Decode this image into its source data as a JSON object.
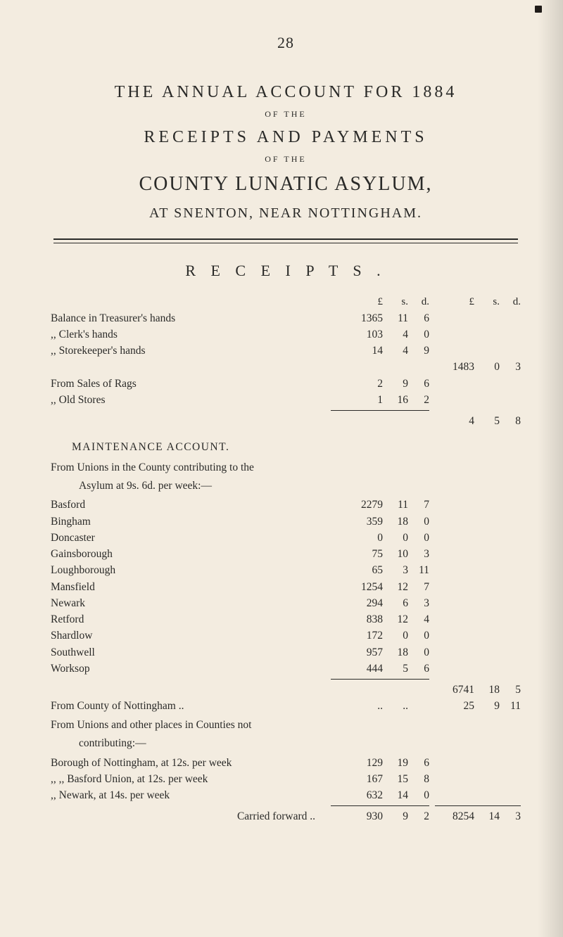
{
  "page_number": "28",
  "titles": {
    "h1": "THE  ANNUAL  ACCOUNT  FOR  1884",
    "of_the": "OF THE",
    "h2": "RECEIPTS  AND  PAYMENTS",
    "h3": "COUNTY LUNATIC ASYLUM,",
    "h4": "AT  SNENTON,  NEAR  NOTTINGHAM.",
    "section": "R E C E I P T S ."
  },
  "columns": {
    "inner": {
      "L": "£",
      "s": "s.",
      "d": "d."
    },
    "outer": {
      "L": "£",
      "s": "s.",
      "d": "d."
    }
  },
  "balance": {
    "rows": [
      {
        "label": "Balance in Treasurer's hands",
        "L": "1365",
        "s": "11",
        "d": "6"
      },
      {
        "label": ",,       Clerk's hands",
        "L": "103",
        "s": "4",
        "d": "0"
      },
      {
        "label": ",,       Storekeeper's hands",
        "L": "14",
        "s": "4",
        "d": "9"
      }
    ],
    "outer_total": {
      "L": "1483",
      "s": "0",
      "d": "3"
    }
  },
  "sales": {
    "rows": [
      {
        "label": "From Sales of Rags",
        "L": "2",
        "s": "9",
        "d": "6"
      },
      {
        "label": ",,       Old Stores",
        "L": "1",
        "s": "16",
        "d": "2"
      }
    ],
    "outer_total": {
      "L": "4",
      "s": "5",
      "d": "8"
    }
  },
  "maintenance": {
    "heading": "MAINTENANCE  ACCOUNT.",
    "intro1": "From Unions in the County contributing to the",
    "intro2": "Asylum at 9s. 6d. per week:—",
    "rows": [
      {
        "label": "Basford",
        "L": "2279",
        "s": "11",
        "d": "7"
      },
      {
        "label": "Bingham",
        "L": "359",
        "s": "18",
        "d": "0"
      },
      {
        "label": "Doncaster",
        "L": "0",
        "s": "0",
        "d": "0"
      },
      {
        "label": "Gainsborough",
        "L": "75",
        "s": "10",
        "d": "3"
      },
      {
        "label": "Loughborough",
        "L": "65",
        "s": "3",
        "d": "11"
      },
      {
        "label": "Mansfield",
        "L": "1254",
        "s": "12",
        "d": "7"
      },
      {
        "label": "Newark",
        "L": "294",
        "s": "6",
        "d": "3"
      },
      {
        "label": "Retford",
        "L": "838",
        "s": "12",
        "d": "4"
      },
      {
        "label": "Shardlow",
        "L": "172",
        "s": "0",
        "d": "0"
      },
      {
        "label": "Southwell",
        "L": "957",
        "s": "18",
        "d": "0"
      },
      {
        "label": "Worksop",
        "L": "444",
        "s": "5",
        "d": "6"
      }
    ],
    "outer_total": {
      "L": "6741",
      "s": "18",
      "d": "5"
    }
  },
  "nottingham": {
    "label": "From County of Nottingham ..",
    "outer": {
      "L": "25",
      "s": "9",
      "d": "11"
    }
  },
  "noncontrib": {
    "para": "From Unions and other places in Counties not",
    "para2": "contributing:—",
    "rows": [
      {
        "label": "Borough of Nottingham, at 12s. per week",
        "L": "129",
        "s": "19",
        "d": "6"
      },
      {
        "label": ",,        ,,     Basford Union, at 12s. per week",
        "L": "167",
        "s": "15",
        "d": "8"
      },
      {
        "label": ",,   Newark, at 14s. per week",
        "L": "632",
        "s": "14",
        "d": "0"
      }
    ]
  },
  "carried": {
    "label": "Carried forward ..",
    "inner": {
      "L": "930",
      "s": "9",
      "d": "2"
    },
    "outer": {
      "L": "8254",
      "s": "14",
      "d": "3"
    }
  },
  "style": {
    "bg": "#f3ece0",
    "text": "#2a2a28"
  }
}
